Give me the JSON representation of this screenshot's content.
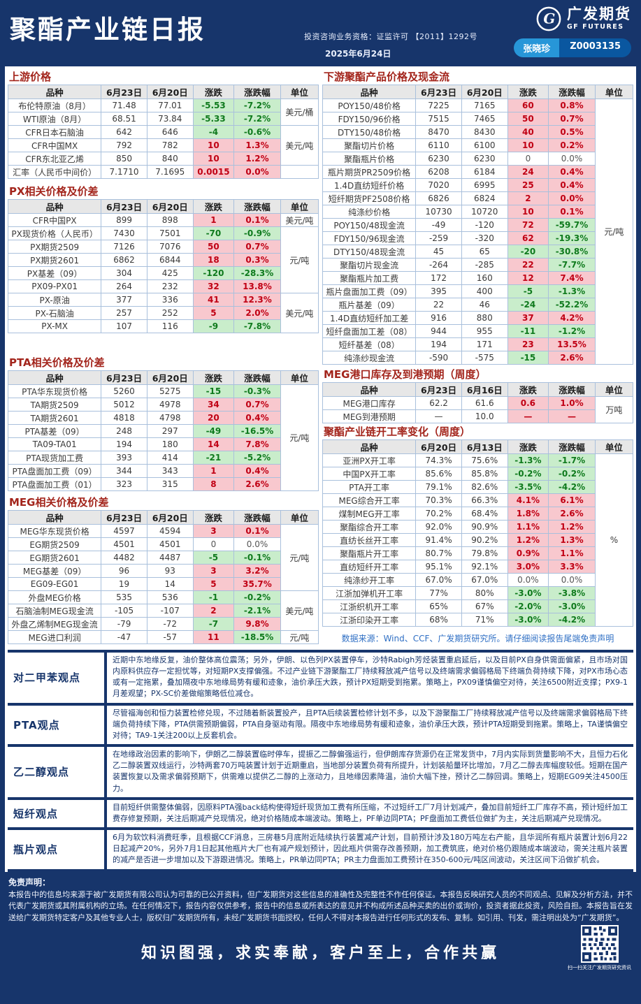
{
  "header": {
    "title": "聚酯产业链日报",
    "qualification": "投资咨询业务资格：证监许可 【2011】1292号",
    "date": "2025年6月24日",
    "brand_cn": "广发期货",
    "brand_en": "GF FUTURES",
    "analyst_name": "张晓珍",
    "analyst_id": "Z0003135"
  },
  "colors": {
    "navy": "#17356b",
    "section_title_red": "#a3251c",
    "up_bg": "#f8c8ce",
    "up_text": "#c00014",
    "down_bg": "#c9edcb",
    "down_text": "#0f7a1d",
    "pill_left": "#2796d8",
    "pill_right": "#0a57a0"
  },
  "left_tables": [
    {
      "id": "upstream-prices",
      "title": "上游价格",
      "headers": [
        "品种",
        "6月23日",
        "6月20日",
        "涨跌",
        "涨跌幅",
        "单位"
      ],
      "gap_after": 6,
      "rows": [
        {
          "n": "布伦特原油（8月）",
          "a": "71.48",
          "b": "77.01",
          "c": "-5.53",
          "cc": "dn",
          "p": "-7.2%",
          "pc": "dn",
          "u": "美元/桶",
          "us": 2
        },
        {
          "n": "WTI原油（8月）",
          "a": "68.51",
          "b": "73.84",
          "c": "-5.33",
          "cc": "dn",
          "p": "-7.2%",
          "pc": "dn"
        },
        {
          "n": "CFR日本石脑油",
          "a": "642",
          "b": "646",
          "c": "-4",
          "cc": "dn",
          "p": "-0.6%",
          "pc": "dn",
          "u": "美元/吨",
          "us": 3
        },
        {
          "n": "CFR中国MX",
          "a": "792",
          "b": "782",
          "c": "10",
          "cc": "up",
          "p": "1.3%",
          "pc": "up"
        },
        {
          "n": "CFR东北亚乙烯",
          "a": "850",
          "b": "840",
          "c": "10",
          "cc": "up",
          "p": "1.2%",
          "pc": "up"
        },
        {
          "n": "汇率（人民币中间价）",
          "a": "7.1710",
          "b": "7.1695",
          "c": "0.0015",
          "cc": "up",
          "p": "0.0%",
          "pc": "up",
          "u": "",
          "us": 1
        }
      ]
    },
    {
      "id": "px-prices",
      "title": "PX相关价格及价差",
      "headers": [
        "品种",
        "6月23日",
        "6月20日",
        "涨跌",
        "涨跌幅",
        "单位"
      ],
      "gap_after": 30,
      "rows": [
        {
          "n": "CFR中国PX",
          "a": "899",
          "b": "898",
          "c": "1",
          "cc": "up",
          "p": "0.1%",
          "pc": "up",
          "u": "美元/吨",
          "us": 1
        },
        {
          "n": "PX现货价格（人民币）",
          "a": "7430",
          "b": "7501",
          "c": "-70",
          "cc": "dn",
          "p": "-0.9%",
          "pc": "dn",
          "u": "元/吨",
          "us": 5
        },
        {
          "n": "PX期货2509",
          "a": "7126",
          "b": "7076",
          "c": "50",
          "cc": "up",
          "p": "0.7%",
          "pc": "up"
        },
        {
          "n": "PX期货2601",
          "a": "6862",
          "b": "6844",
          "c": "18",
          "cc": "up",
          "p": "0.3%",
          "pc": "up"
        },
        {
          "n": "PX基差（09）",
          "a": "304",
          "b": "425",
          "c": "-120",
          "cc": "dn",
          "p": "-28.3%",
          "pc": "dn"
        },
        {
          "n": "PX09-PX01",
          "a": "264",
          "b": "232",
          "c": "32",
          "cc": "up",
          "p": "13.8%",
          "pc": "up"
        },
        {
          "n": "PX-原油",
          "a": "377",
          "b": "336",
          "c": "41",
          "cc": "up",
          "p": "12.3%",
          "pc": "up",
          "u": "美元/吨",
          "us": 3
        },
        {
          "n": "PX-石脑油",
          "a": "257",
          "b": "252",
          "c": "5",
          "cc": "up",
          "p": "2.0%",
          "pc": "up"
        },
        {
          "n": "PX-MX",
          "a": "107",
          "b": "116",
          "c": "-9",
          "cc": "dn",
          "p": "-7.8%",
          "pc": "dn"
        }
      ]
    },
    {
      "id": "pta-prices",
      "title": "PTA相关价格及价差",
      "headers": [
        "品种",
        "6月23日",
        "6月20日",
        "涨跌",
        "涨跌幅",
        "单位"
      ],
      "gap_after": 4,
      "rows": [
        {
          "n": "PTA华东现货价格",
          "a": "5260",
          "b": "5275",
          "c": "-15",
          "cc": "dn",
          "p": "-0.3%",
          "pc": "dn",
          "u": "元/吨",
          "us": 8
        },
        {
          "n": "TA期货2509",
          "a": "5012",
          "b": "4978",
          "c": "34",
          "cc": "up",
          "p": "0.7%",
          "pc": "up"
        },
        {
          "n": "TA期货2601",
          "a": "4818",
          "b": "4798",
          "c": "20",
          "cc": "up",
          "p": "0.4%",
          "pc": "up"
        },
        {
          "n": "PTA基差（09）",
          "a": "248",
          "b": "297",
          "c": "-49",
          "cc": "dn",
          "p": "-16.5%",
          "pc": "dn"
        },
        {
          "n": "TA09-TA01",
          "a": "194",
          "b": "180",
          "c": "14",
          "cc": "up",
          "p": "7.8%",
          "pc": "up"
        },
        {
          "n": "PTA现货加工费",
          "a": "393",
          "b": "414",
          "c": "-21",
          "cc": "dn",
          "p": "-5.2%",
          "pc": "dn"
        },
        {
          "n": "PTA盘面加工费（09）",
          "a": "344",
          "b": "343",
          "c": "1",
          "cc": "up",
          "p": "0.4%",
          "pc": "up"
        },
        {
          "n": "PTA盘面加工费（01）",
          "a": "323",
          "b": "315",
          "c": "8",
          "cc": "up",
          "p": "2.6%",
          "pc": "up"
        }
      ]
    },
    {
      "id": "meg-prices",
      "title": "MEG相关价格及价差",
      "headers": [
        "品种",
        "6月23日",
        "6月20日",
        "涨跌",
        "涨跌幅",
        "单位"
      ],
      "gap_after": 0,
      "rows": [
        {
          "n": "MEG华东现货价格",
          "a": "4597",
          "b": "4594",
          "c": "3",
          "cc": "up",
          "p": "0.1%",
          "pc": "up",
          "u": "元/吨",
          "us": 5
        },
        {
          "n": "EG期货2509",
          "a": "4501",
          "b": "4501",
          "c": "0",
          "cc": "fl",
          "p": "0.0%",
          "pc": "fl"
        },
        {
          "n": "EG期货2601",
          "a": "4482",
          "b": "4487",
          "c": "-5",
          "cc": "dn",
          "p": "-0.1%",
          "pc": "dn"
        },
        {
          "n": "MEG基差（09）",
          "a": "96",
          "b": "93",
          "c": "3",
          "cc": "up",
          "p": "3.2%",
          "pc": "up"
        },
        {
          "n": "EG09-EG01",
          "a": "19",
          "b": "14",
          "c": "5",
          "cc": "up",
          "p": "35.7%",
          "pc": "up"
        },
        {
          "n": "外盘MEG价格",
          "a": "535",
          "b": "536",
          "c": "-1",
          "cc": "dn",
          "p": "-0.2%",
          "pc": "dn",
          "u": "美元/吨",
          "us": 3
        },
        {
          "n": "石脑油制MEG现金流",
          "a": "-105",
          "b": "-107",
          "c": "2",
          "cc": "up",
          "p": "-2.1%",
          "pc": "dn"
        },
        {
          "n": "外盘乙烯制MEG现金流",
          "a": "-79",
          "b": "-72",
          "c": "-7",
          "cc": "dn",
          "p": "9.8%",
          "pc": "up"
        },
        {
          "n": "MEG进口利润",
          "a": "-47",
          "b": "-57",
          "c": "11",
          "cc": "up",
          "p": "-18.5%",
          "pc": "dn",
          "u": "元/吨",
          "us": 1
        }
      ]
    }
  ],
  "right_tables": [
    {
      "id": "downstream-polyester",
      "title": "下游聚酯产品价格及现金流",
      "headers": [
        "品种",
        "6月23日",
        "6月20日",
        "涨跌",
        "涨跌幅",
        "单位"
      ],
      "gap_after": 2,
      "rows": [
        {
          "n": "POY150/48价格",
          "a": "7225",
          "b": "7165",
          "c": "60",
          "cc": "up",
          "p": "0.8%",
          "pc": "up",
          "u": "元/吨",
          "us": 20
        },
        {
          "n": "FDY150/96价格",
          "a": "7515",
          "b": "7465",
          "c": "50",
          "cc": "up",
          "p": "0.7%",
          "pc": "up"
        },
        {
          "n": "DTY150/48价格",
          "a": "8470",
          "b": "8430",
          "c": "40",
          "cc": "up",
          "p": "0.5%",
          "pc": "up"
        },
        {
          "n": "聚酯切片价格",
          "a": "6110",
          "b": "6100",
          "c": "10",
          "cc": "up",
          "p": "0.2%",
          "pc": "up"
        },
        {
          "n": "聚酯瓶片价格",
          "a": "6230",
          "b": "6230",
          "c": "0",
          "cc": "fl",
          "p": "0.0%",
          "pc": "fl"
        },
        {
          "n": "瓶片期货PR2509价格",
          "a": "6208",
          "b": "6184",
          "c": "24",
          "cc": "up",
          "p": "0.4%",
          "pc": "up"
        },
        {
          "n": "1.4D直纺短纤价格",
          "a": "7020",
          "b": "6995",
          "c": "25",
          "cc": "up",
          "p": "0.4%",
          "pc": "up"
        },
        {
          "n": "短纤期货PF2508价格",
          "a": "6826",
          "b": "6824",
          "c": "2",
          "cc": "up",
          "p": "0.0%",
          "pc": "up"
        },
        {
          "n": "纯涤纱价格",
          "a": "10730",
          "b": "10720",
          "c": "10",
          "cc": "up",
          "p": "0.1%",
          "pc": "up"
        },
        {
          "n": "POY150/48现金流",
          "a": "-49",
          "b": "-120",
          "c": "72",
          "cc": "up",
          "p": "-59.7%",
          "pc": "dn"
        },
        {
          "n": "FDY150/96现金流",
          "a": "-259",
          "b": "-320",
          "c": "62",
          "cc": "up",
          "p": "-19.3%",
          "pc": "dn"
        },
        {
          "n": "DTY150/48现金流",
          "a": "45",
          "b": "65",
          "c": "-20",
          "cc": "dn",
          "p": "-30.8%",
          "pc": "dn"
        },
        {
          "n": "聚酯切片现金流",
          "a": "-264",
          "b": "-285",
          "c": "22",
          "cc": "up",
          "p": "-7.7%",
          "pc": "dn"
        },
        {
          "n": "聚酯瓶片加工费",
          "a": "172",
          "b": "160",
          "c": "12",
          "cc": "up",
          "p": "7.4%",
          "pc": "up"
        },
        {
          "n": "瓶片盘面加工费（09）",
          "a": "395",
          "b": "400",
          "c": "-5",
          "cc": "dn",
          "p": "-1.3%",
          "pc": "dn"
        },
        {
          "n": "瓶片基差（09）",
          "a": "22",
          "b": "46",
          "c": "-24",
          "cc": "dn",
          "p": "-52.2%",
          "pc": "dn"
        },
        {
          "n": "1.4D直纺短纤加工差",
          "a": "916",
          "b": "880",
          "c": "37",
          "cc": "up",
          "p": "4.2%",
          "pc": "up"
        },
        {
          "n": "短纤盘面加工差（08）",
          "a": "944",
          "b": "955",
          "c": "-11",
          "cc": "dn",
          "p": "-1.2%",
          "pc": "dn"
        },
        {
          "n": "短纤基差（08）",
          "a": "194",
          "b": "171",
          "c": "23",
          "cc": "up",
          "p": "13.5%",
          "pc": "up"
        },
        {
          "n": "纯涤纱现金流",
          "a": "-590",
          "b": "-575",
          "c": "-15",
          "cc": "dn",
          "p": "2.6%",
          "pc": "up"
        }
      ]
    },
    {
      "id": "meg-port-inventory",
      "title": "MEG港口库存及到港预期（周度）",
      "headers": [
        "品种",
        "6月23日",
        "6月16日",
        "涨跌",
        "涨跌幅",
        "单位"
      ],
      "gap_after": 0,
      "rows": [
        {
          "n": "MEG港口库存",
          "a": "62.2",
          "b": "61.6",
          "c": "0.6",
          "cc": "up",
          "p": "1.0%",
          "pc": "up",
          "u": "万吨",
          "us": 2
        },
        {
          "n": "MEG到港预期",
          "a": "—",
          "b": "10.0",
          "c": "—",
          "cc": "up",
          "p": "—",
          "pc": "up"
        }
      ]
    },
    {
      "id": "operating-rates",
      "title": "聚酯产业链开工率变化（周度）",
      "headers": [
        "品种",
        "6月20日",
        "6月13日",
        "涨跌",
        "涨跌幅",
        "单位"
      ],
      "gap_after": 0,
      "rows": [
        {
          "n": "亚洲PX开工率",
          "a": "74.3%",
          "b": "75.6%",
          "c": "-1.3%",
          "cc": "dn",
          "p": "-1.7%",
          "pc": "dn",
          "u": "%",
          "us": 13
        },
        {
          "n": "中国PX开工率",
          "a": "85.6%",
          "b": "85.8%",
          "c": "-0.2%",
          "cc": "dn",
          "p": "-0.2%",
          "pc": "dn"
        },
        {
          "n": "PTA开工率",
          "a": "79.1%",
          "b": "82.6%",
          "c": "-3.5%",
          "cc": "dn",
          "p": "-4.2%",
          "pc": "dn"
        },
        {
          "n": "MEG综合开工率",
          "a": "70.3%",
          "b": "66.3%",
          "c": "4.1%",
          "cc": "up",
          "p": "6.1%",
          "pc": "up"
        },
        {
          "n": "煤制MEG开工率",
          "a": "70.2%",
          "b": "68.4%",
          "c": "1.8%",
          "cc": "up",
          "p": "2.6%",
          "pc": "up"
        },
        {
          "n": "聚酯综合开工率",
          "a": "92.0%",
          "b": "90.9%",
          "c": "1.1%",
          "cc": "up",
          "p": "1.2%",
          "pc": "up"
        },
        {
          "n": "直纺长丝开工率",
          "a": "91.4%",
          "b": "90.2%",
          "c": "1.2%",
          "cc": "up",
          "p": "1.3%",
          "pc": "up"
        },
        {
          "n": "聚酯瓶片开工率",
          "a": "80.7%",
          "b": "79.8%",
          "c": "0.9%",
          "cc": "up",
          "p": "1.1%",
          "pc": "up"
        },
        {
          "n": "直纺短纤开工率",
          "a": "95.1%",
          "b": "92.1%",
          "c": "3.0%",
          "cc": "up",
          "p": "3.3%",
          "pc": "up"
        },
        {
          "n": "纯涤纱开工率",
          "a": "67.0%",
          "b": "67.0%",
          "c": "0.0%",
          "cc": "fl",
          "p": "0.0%",
          "pc": "fl"
        },
        {
          "n": "江浙加弹机开工率",
          "a": "77%",
          "b": "80%",
          "c": "-3.0%",
          "cc": "dn",
          "p": "-3.8%",
          "pc": "dn"
        },
        {
          "n": "江浙织机开工率",
          "a": "65%",
          "b": "67%",
          "c": "-2.0%",
          "cc": "dn",
          "p": "-3.0%",
          "pc": "dn"
        },
        {
          "n": "江浙印染开工率",
          "a": "68%",
          "b": "71%",
          "c": "-3.0%",
          "cc": "dn",
          "p": "-4.2%",
          "pc": "dn"
        }
      ]
    }
  ],
  "right_footnote": "数据来源：Wind、CCF、广发期货研究所。请仔细阅读报告尾端免责声明",
  "opinions": [
    {
      "label": "对二甲苯观点",
      "text": "近期中东地缘反复，油价整体高位震荡；另外，伊朗、以色列PX装置停车，沙特Rabigh芳烃装置重启延后，以及目前PX自身供需面偏紧，且市场对国内原料供应存一定担忧等，对短期PX支撑偏强。不过产业链下游聚酯工厂持续释放减产信号以及终端需求偏弱格局下终端负荷持续下降，对PX市场心态或有一定拖累，叠加隔夜中东地缘局势有缓和迹象，油价承压大跌，预计PX短期受到拖累。策略上，PX09谨慎偏空对待，关注6500附近支撑；PX9-1月差观望；PX-SC价差做缩策略低位减仓。"
    },
    {
      "label": "PTA观点",
      "text": "尽管福海创和恒力装置检修兑现，不过随着新装置投产，且PTA后续装置检修计划不多，以及下游聚酯工厂持续释放减产信号以及终端需求偏弱格局下终端负荷持续下降，PTA供需预期偏弱，PTA自身驱动有限。隔夜中东地缘局势有缓和迹象，油价承压大跌，预计PTA短期受到拖累。策略上，TA谨慎偏空对待；TA9-1关注200以上反套机会。"
    },
    {
      "label": "乙二醇观点",
      "text": "在地缘政治因素的影响下，伊朗乙二醇装置临时停车，提振乙二醇偏强运行，但伊朗库存货源仍在正常发货中，7月内实际到货量影响不大，且恒力石化乙二醇装置双线运行，沙特两套70万吨装置计划于近期重启，当地部分装置负荷有所提升，计划装船量环比增加，7月乙二醇去库幅度较低。短期在国产装置恢复以及需求偏弱预期下，供需难以提供乙二醇的上涨动力，且地缘因素降温，油价大幅下挫，预计乙二醇回调。策略上，短期EG09关注4500压力。"
    },
    {
      "label": "短纤观点",
      "text": "目前短纤供需整体偏弱，因原料PTA强back结构使得短纤现货加工费有所压缩，不过短纤工厂7月计划减产，叠加目前短纤工厂库存不高，预计短纤加工费存修复预期，关注后期减产兑现情况，绝对价格随成本端波动。策略上，PF单边同PTA；PF盘面加工费低位做扩为主，关注后期减产兑现情况。"
    },
    {
      "label": "瓶片观点",
      "text": "6月为软饮料消费旺季，且根据CCF消息，三房巷5月底附近陆续执行装置减产计划，目前预计涉及180万吨左右产能，且华润所有瓶片装置计划6月22日起减产20%，另外7月1日起其他瓶片大厂也有减产规划预计，因此瓶片供需存改善预期，加工费筑底，绝对价格仍跟随成本端波动，需关注瓶片装置的减产是否进一步增加以及下游跟进情况。策略上，PR单边同PTA；PR主力盘面加工费预计在350-600元/吨区间波动，关注区间下沿做扩机会。"
    }
  ],
  "disclaimer": {
    "title": "免责声明：",
    "body": "本报告中的信息均来源于被广发期货有限公司认为可靠的已公开资料，但广发期货对这些信息的准确性及完整性不作任何保证。本报告反映研究人员的不同观点、见解及分析方法，并不代表广发期货或其附属机构的立场。在任何情况下，报告内容仅供参考，报告中的信息或所表达的意见并不构成所述品种买卖的出价或询价，投资者据此投资，风险自担。本报告旨在发送给广发期货特定客户及其他专业人士，版权归广发期货所有，未经广发期货书面授权，任何人不得对本报告进行任何形式的发布、复制。如引用、刊发，需注明出处为“广发期货”。"
  },
  "footer": {
    "slogan": "知识图强，求实奉献，客户至上，合作共赢",
    "qr_caption": "扫一扫关注广发期货研究资讯"
  }
}
